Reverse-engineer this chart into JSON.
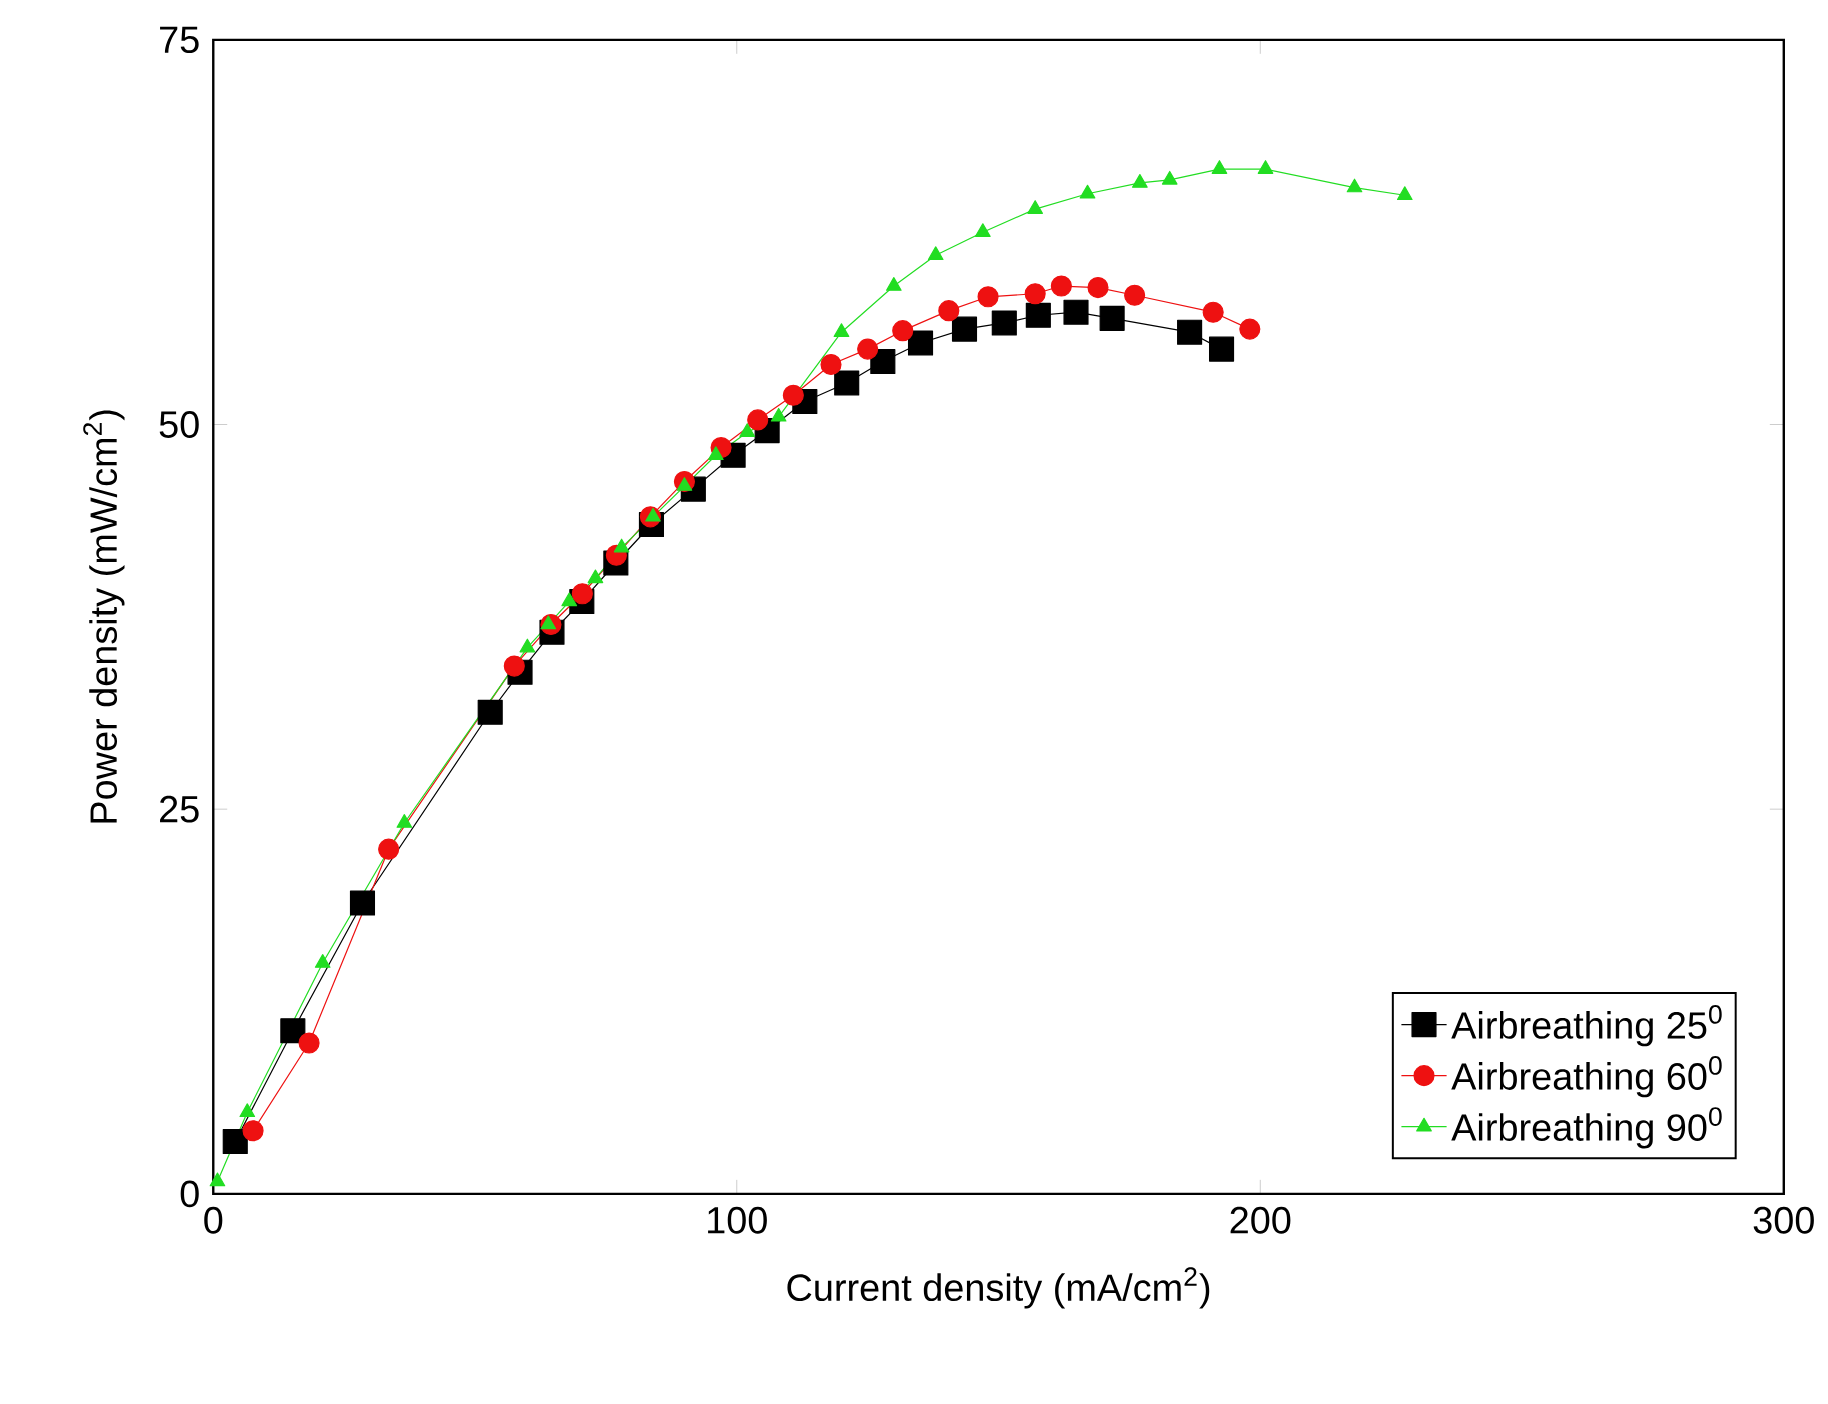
{
  "chart_data": {
    "type": "line",
    "xlabel": "Current density (mA/cm$^{2}$)",
    "ylabel": "Power density (mW/cm$^{2}$)",
    "xlim": [
      0,
      300
    ],
    "ylim": [
      0,
      75
    ],
    "xticks": [
      0,
      100,
      200,
      300
    ],
    "yticks": [
      0,
      25,
      50,
      75
    ],
    "grid": false,
    "legend": "bottom right",
    "series": [
      {
        "name": "Airbreathing  25$^{0}$",
        "color": "#000000",
        "marker": "square",
        "x": [
          4.2,
          15.2,
          28.5,
          52.9,
          58.6,
          64.7,
          70.4,
          76.9,
          83.7,
          91.7,
          99.3,
          105.8,
          113.0,
          121.0,
          127.9,
          135.1,
          143.5,
          151.1,
          157.6,
          164.8,
          171.7,
          186.5,
          192.6
        ],
        "values": [
          3.4,
          10.6,
          18.9,
          31.3,
          33.9,
          36.5,
          38.5,
          41.0,
          43.5,
          45.8,
          48.0,
          49.6,
          51.5,
          52.7,
          54.1,
          55.3,
          56.2,
          56.6,
          57.1,
          57.3,
          56.9,
          56.0,
          54.9
        ]
      },
      {
        "name": "Airbreathing  60$^{0}$",
        "color": "#ee1111",
        "marker": "circle",
        "x": [
          7.6,
          18.3,
          33.5,
          57.5,
          64.5,
          70.5,
          77,
          83.5,
          90,
          97,
          104,
          110.8,
          118,
          125,
          131.7,
          140.5,
          148,
          157,
          162,
          169,
          176,
          191,
          198
        ],
        "values": [
          4.1,
          9.8,
          22.4,
          34.3,
          37.0,
          39.0,
          41.5,
          44.0,
          46.3,
          48.5,
          50.3,
          51.9,
          53.9,
          54.9,
          56.1,
          57.4,
          58.3,
          58.5,
          59.0,
          58.9,
          58.4,
          57.3,
          56.2
        ]
      },
      {
        "name": "Airbreathing  90$^{0}$",
        "color": "#22dd22",
        "marker": "triangle",
        "x": [
          0.8,
          6.5,
          20.9,
          36.5,
          60,
          64,
          68,
          73,
          78,
          84,
          90,
          96,
          102,
          108,
          120,
          130,
          138,
          147,
          157,
          167,
          177,
          182.7,
          192.2,
          201,
          218,
          227.6
        ],
        "values": [
          0.8,
          5.3,
          15.0,
          24.1,
          35.5,
          37.0,
          38.5,
          40.0,
          42.0,
          44.0,
          46.0,
          48.0,
          49.5,
          50.5,
          56.0,
          59.0,
          61.0,
          62.5,
          64.0,
          65.0,
          65.7,
          65.9,
          66.6,
          66.6,
          65.4,
          64.9
        ]
      }
    ]
  }
}
